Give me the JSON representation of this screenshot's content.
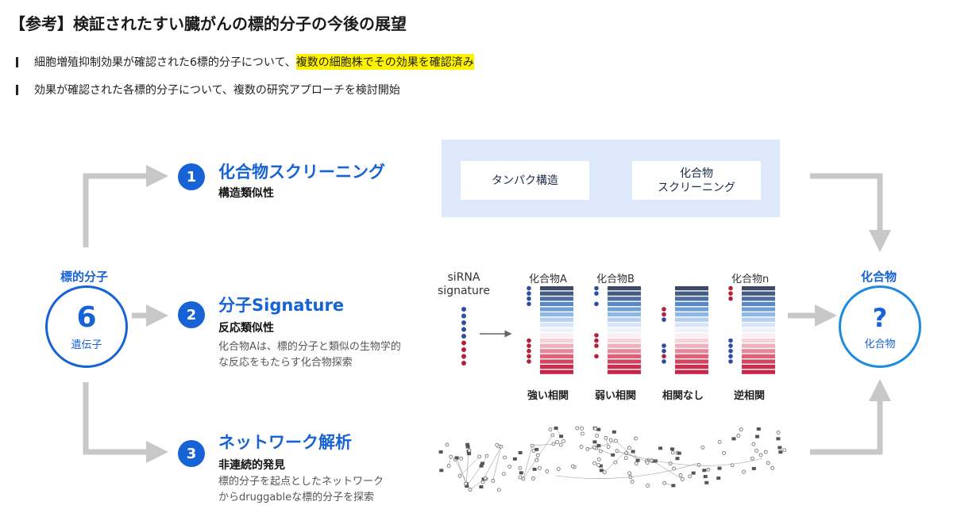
{
  "header": {
    "title": "【参考】検証されたすい臓がんの標的分子の今後の展望",
    "bullets": [
      {
        "text": "細胞増殖抑制効果が確認された6標的分子について、",
        "highlight": "複数の細胞株でその効果を確認済み"
      },
      {
        "text": "効果が確認された各標的分子について、複数の研究アプローチを検討開始",
        "highlight": ""
      }
    ]
  },
  "source": {
    "label": "標的分子",
    "number": "6",
    "unit": "遺伝子"
  },
  "target": {
    "label": "化合物",
    "symbol": "?",
    "unit": "化合物"
  },
  "approaches": [
    {
      "num": "1",
      "title": "化合物スクリーニング",
      "subtitle": "構造類似性",
      "desc": []
    },
    {
      "num": "2",
      "title": "分子Signature",
      "subtitle": "反応類似性",
      "desc": [
        "化合物Aは、標的分子と類似の生物学的",
        "な反応をもたらす化合物探索"
      ]
    },
    {
      "num": "3",
      "title": "ネットワーク解析",
      "subtitle": "非連続的発見",
      "desc": [
        "標的分子を起点としたネットワーク",
        "からdruggableな標的分子を探索"
      ]
    }
  ],
  "screening": {
    "box1": "タンパク構造",
    "box2_line1": "化合物",
    "box2_line2": "スクリーニング"
  },
  "signature": {
    "sirna_line1": "siRNA",
    "sirna_line2": "signature",
    "compounds": [
      "化合物A",
      "化合物B",
      "",
      "化合物n"
    ],
    "correlations": [
      "強い相関",
      "弱い相関",
      "相関なし",
      "逆相関"
    ]
  },
  "colors": {
    "accent": "#1763d6",
    "arrow": "#c8c8c8",
    "panel": "#dde8fb",
    "highlight": "#fff200",
    "dot_blue": "#2e4fa0",
    "dot_red": "#b3203a"
  }
}
